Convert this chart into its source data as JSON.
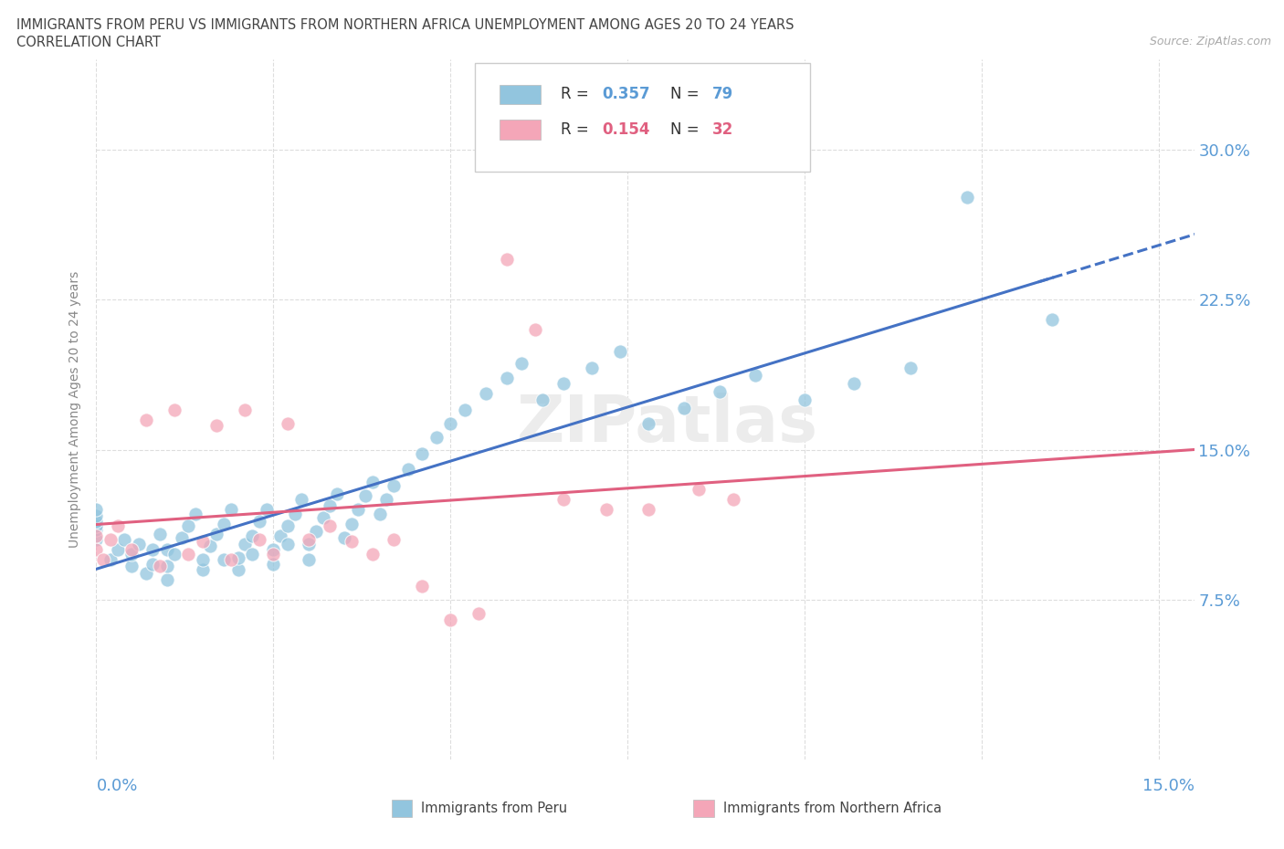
{
  "title_line1": "IMMIGRANTS FROM PERU VS IMMIGRANTS FROM NORTHERN AFRICA UNEMPLOYMENT AMONG AGES 20 TO 24 YEARS",
  "title_line2": "CORRELATION CHART",
  "source": "Source: ZipAtlas.com",
  "ylabel": "Unemployment Among Ages 20 to 24 years",
  "y_tick_labels": [
    "7.5%",
    "15.0%",
    "22.5%",
    "30.0%"
  ],
  "y_tick_values": [
    0.075,
    0.15,
    0.225,
    0.3
  ],
  "xlim": [
    0.0,
    0.155
  ],
  "ylim": [
    -0.005,
    0.345
  ],
  "legend_r1": "0.357",
  "legend_n1": "79",
  "legend_r2": "0.154",
  "legend_n2": "32",
  "color_peru": "#92C5DE",
  "color_n_africa": "#F4A6B8",
  "color_peru_line": "#4472C4",
  "color_n_africa_line": "#E06080",
  "watermark": "ZIPatlas",
  "peru_x": [
    0.0,
    0.0,
    0.0,
    0.0,
    0.0,
    0.0,
    0.002,
    0.003,
    0.004,
    0.005,
    0.005,
    0.006,
    0.007,
    0.008,
    0.008,
    0.009,
    0.01,
    0.01,
    0.01,
    0.011,
    0.012,
    0.013,
    0.014,
    0.015,
    0.015,
    0.016,
    0.017,
    0.018,
    0.018,
    0.019,
    0.02,
    0.02,
    0.021,
    0.022,
    0.022,
    0.023,
    0.024,
    0.025,
    0.025,
    0.026,
    0.027,
    0.027,
    0.028,
    0.029,
    0.03,
    0.03,
    0.031,
    0.032,
    0.033,
    0.034,
    0.035,
    0.036,
    0.037,
    0.038,
    0.039,
    0.04,
    0.041,
    0.042,
    0.044,
    0.046,
    0.048,
    0.05,
    0.052,
    0.055,
    0.058,
    0.06,
    0.063,
    0.066,
    0.07,
    0.074,
    0.078,
    0.083,
    0.088,
    0.093,
    0.1,
    0.107,
    0.115,
    0.123,
    0.135
  ],
  "peru_y": [
    0.105,
    0.11,
    0.112,
    0.114,
    0.117,
    0.12,
    0.095,
    0.1,
    0.105,
    0.092,
    0.098,
    0.103,
    0.088,
    0.093,
    0.1,
    0.108,
    0.085,
    0.092,
    0.1,
    0.098,
    0.106,
    0.112,
    0.118,
    0.09,
    0.095,
    0.102,
    0.108,
    0.095,
    0.113,
    0.12,
    0.09,
    0.096,
    0.103,
    0.098,
    0.107,
    0.114,
    0.12,
    0.093,
    0.1,
    0.107,
    0.103,
    0.112,
    0.118,
    0.125,
    0.095,
    0.103,
    0.109,
    0.116,
    0.122,
    0.128,
    0.106,
    0.113,
    0.12,
    0.127,
    0.134,
    0.118,
    0.125,
    0.132,
    0.14,
    0.148,
    0.156,
    0.163,
    0.17,
    0.178,
    0.186,
    0.193,
    0.175,
    0.183,
    0.191,
    0.199,
    0.163,
    0.171,
    0.179,
    0.187,
    0.175,
    0.183,
    0.191,
    0.276,
    0.215
  ],
  "nafrica_x": [
    0.0,
    0.0,
    0.001,
    0.002,
    0.003,
    0.005,
    0.007,
    0.009,
    0.011,
    0.013,
    0.015,
    0.017,
    0.019,
    0.021,
    0.023,
    0.025,
    0.027,
    0.03,
    0.033,
    0.036,
    0.039,
    0.042,
    0.046,
    0.05,
    0.054,
    0.058,
    0.062,
    0.066,
    0.072,
    0.078,
    0.085,
    0.09
  ],
  "nafrica_y": [
    0.1,
    0.107,
    0.095,
    0.105,
    0.112,
    0.1,
    0.165,
    0.092,
    0.17,
    0.098,
    0.104,
    0.162,
    0.095,
    0.17,
    0.105,
    0.098,
    0.163,
    0.105,
    0.112,
    0.104,
    0.098,
    0.105,
    0.082,
    0.065,
    0.068,
    0.245,
    0.21,
    0.125,
    0.12,
    0.12,
    0.13,
    0.125
  ]
}
